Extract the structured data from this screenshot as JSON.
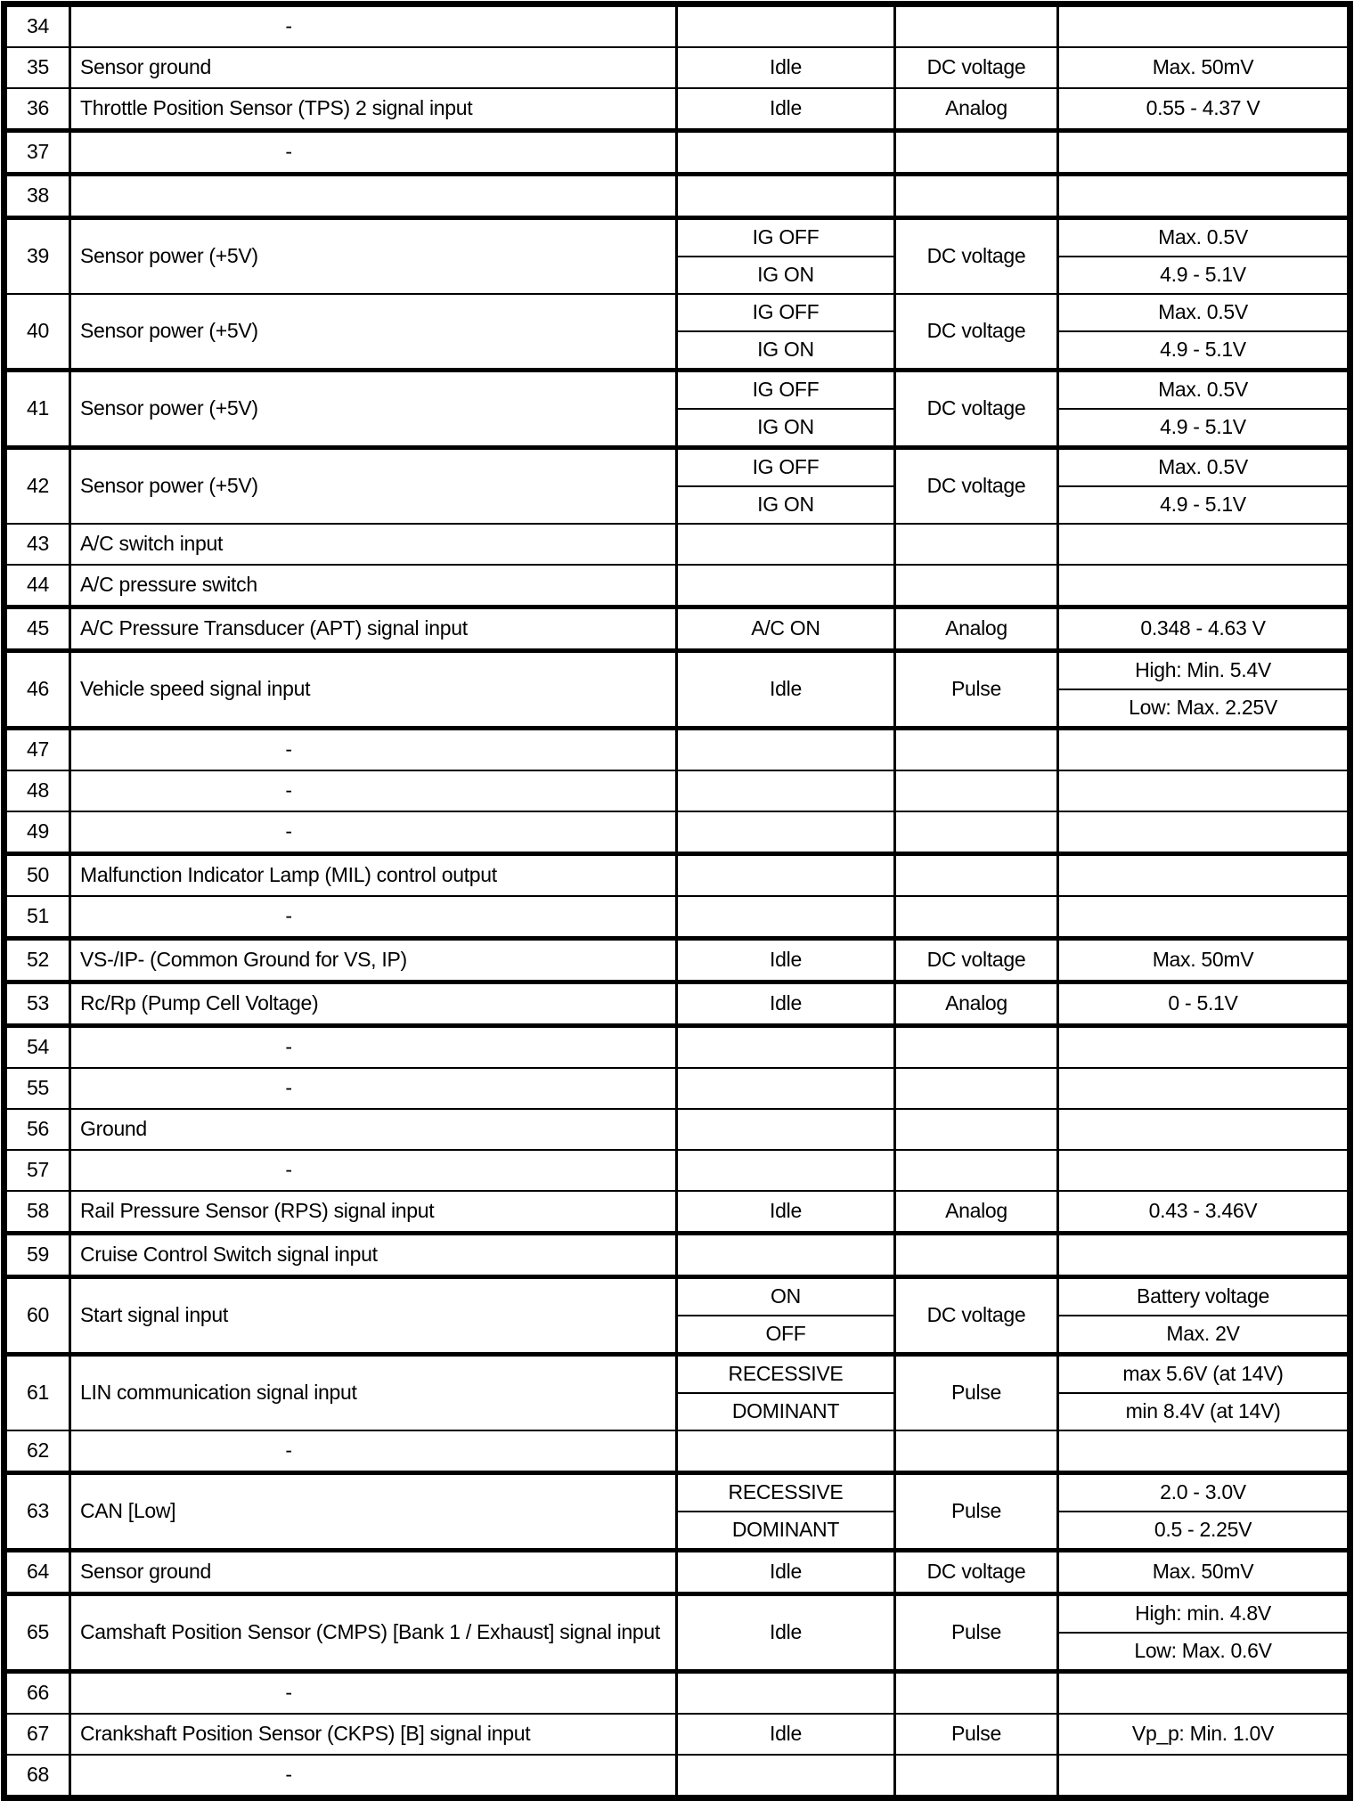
{
  "table": {
    "columns": [
      "pin",
      "description",
      "condition",
      "type",
      "value"
    ],
    "rows": [
      {
        "pin": "34",
        "desc": "-",
        "dash": true
      },
      {
        "pin": "35",
        "desc": "Sensor ground",
        "condition": "Idle",
        "type": "DC voltage",
        "value": "Max. 50mV"
      },
      {
        "pin": "36",
        "desc": "Throttle Position Sensor (TPS) 2 signal input",
        "condition": "Idle",
        "type": "Analog",
        "value": "0.55 - 4.37 V"
      },
      {
        "pin": "37",
        "desc": "-",
        "dash": true,
        "thick_top": true
      },
      {
        "pin": "38",
        "desc": "",
        "thick_top": true
      },
      {
        "pin": "39",
        "desc": "Sensor power (+5V)",
        "conditions": [
          "IG OFF",
          "IG ON"
        ],
        "type": "DC voltage",
        "values": [
          "Max. 0.5V",
          "4.9 - 5.1V"
        ],
        "thick_top": true
      },
      {
        "pin": "40",
        "desc": "Sensor power (+5V)",
        "conditions": [
          "IG OFF",
          "IG ON"
        ],
        "type": "DC voltage",
        "values": [
          "Max. 0.5V",
          "4.9 - 5.1V"
        ]
      },
      {
        "pin": "41",
        "desc": "Sensor power (+5V)",
        "conditions": [
          "IG OFF",
          "IG ON"
        ],
        "type": "DC voltage",
        "values": [
          "Max. 0.5V",
          "4.9 - 5.1V"
        ],
        "thick_top": true
      },
      {
        "pin": "42",
        "desc": "Sensor power (+5V)",
        "conditions": [
          "IG OFF",
          "IG ON"
        ],
        "type": "DC voltage",
        "values": [
          "Max. 0.5V",
          "4.9 - 5.1V"
        ],
        "thick_top": true
      },
      {
        "pin": "43",
        "desc": "A/C switch input"
      },
      {
        "pin": "44",
        "desc": "A/C pressure switch"
      },
      {
        "pin": "45",
        "desc": "A/C Pressure Transducer (APT) signal input",
        "condition": "A/C ON",
        "type": "Analog",
        "value": "0.348 - 4.63 V",
        "thick_top": true
      },
      {
        "pin": "46",
        "desc": "Vehicle speed signal input",
        "condition": "Idle",
        "type": "Pulse",
        "values": [
          "High: Min. 5.4V",
          "Low: Max. 2.25V"
        ],
        "thick_top": true
      },
      {
        "pin": "47",
        "desc": "-",
        "dash": true,
        "thick_top": true
      },
      {
        "pin": "48",
        "desc": "-",
        "dash": true
      },
      {
        "pin": "49",
        "desc": "-",
        "dash": true
      },
      {
        "pin": "50",
        "desc": "Malfunction Indicator Lamp (MIL) control output",
        "thick_top": true
      },
      {
        "pin": "51",
        "desc": "-",
        "dash": true
      },
      {
        "pin": "52",
        "desc": "VS-/IP- (Common Ground for VS, IP)",
        "condition": "Idle",
        "type": "DC voltage",
        "value": "Max. 50mV",
        "thick_top": true
      },
      {
        "pin": "53",
        "desc": "Rc/Rp (Pump Cell Voltage)",
        "condition": "Idle",
        "type": "Analog",
        "value": "0 - 5.1V",
        "thick_top": true
      },
      {
        "pin": "54",
        "desc": "-",
        "dash": true,
        "thick_top": true
      },
      {
        "pin": "55",
        "desc": "-",
        "dash": true
      },
      {
        "pin": "56",
        "desc": "Ground"
      },
      {
        "pin": "57",
        "desc": "-",
        "dash": true
      },
      {
        "pin": "58",
        "desc": "Rail Pressure Sensor (RPS) signal input",
        "condition": "Idle",
        "type": "Analog",
        "value": "0.43 - 3.46V"
      },
      {
        "pin": "59",
        "desc": "Cruise Control Switch signal input",
        "thick_top": true
      },
      {
        "pin": "60",
        "desc": "Start signal input",
        "conditions": [
          "ON",
          "OFF"
        ],
        "type": "DC voltage",
        "values": [
          "Battery voltage",
          "Max. 2V"
        ],
        "thick_top": true
      },
      {
        "pin": "61",
        "desc": "LIN communication signal input",
        "conditions": [
          "RECESSIVE",
          "DOMINANT"
        ],
        "type": "Pulse",
        "values": [
          "max 5.6V (at 14V)",
          "min 8.4V (at 14V)"
        ],
        "thick_top": true
      },
      {
        "pin": "62",
        "desc": "-",
        "dash": true
      },
      {
        "pin": "63",
        "desc": "CAN [Low]",
        "conditions": [
          "RECESSIVE",
          "DOMINANT"
        ],
        "type": "Pulse",
        "values": [
          "2.0 - 3.0V",
          "0.5 - 2.25V"
        ],
        "thick_top": true
      },
      {
        "pin": "64",
        "desc": "Sensor ground",
        "condition": "Idle",
        "type": "DC voltage",
        "value": "Max. 50mV",
        "thick_top": true
      },
      {
        "pin": "65",
        "desc": "Camshaft Position Sensor (CMPS) [Bank 1 / Exhaust] signal input",
        "condition": "Idle",
        "type": "Pulse",
        "values": [
          "High: min. 4.8V",
          "Low: Max. 0.6V"
        ],
        "thick_top": true
      },
      {
        "pin": "66",
        "desc": "-",
        "dash": true,
        "thick_top": true
      },
      {
        "pin": "67",
        "desc": "Crankshaft Position Sensor (CKPS) [B] signal input",
        "condition": "Idle",
        "type": "Pulse",
        "value": "Vp_p: Min. 1.0V"
      },
      {
        "pin": "68",
        "desc": "-",
        "dash": true
      }
    ]
  }
}
